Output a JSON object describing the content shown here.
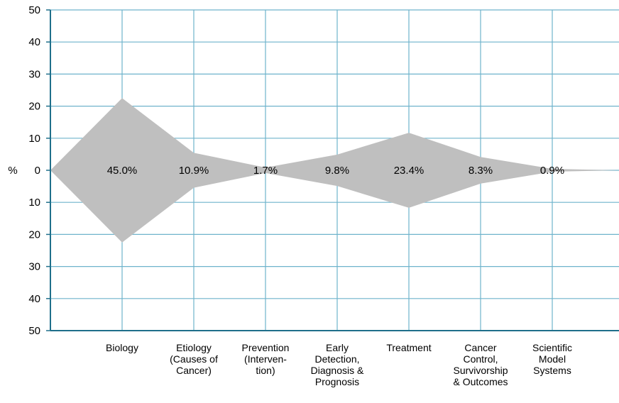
{
  "chart_data": {
    "type": "centered-area",
    "y_label": "%",
    "categories": [
      "Biology",
      "Etiology\n(Causes of\nCancer)",
      "Prevention\n(Interven-\ntion)",
      "Early\nDetection,\nDiagnosis &\nPrognosis",
      "Treatment",
      "Cancer\nControl,\nSurvivorship\n& Outcomes",
      "Scientific\nModel\nSystems"
    ],
    "values": [
      45.0,
      10.9,
      1.7,
      9.8,
      23.4,
      8.3,
      0.9
    ],
    "value_labels": [
      "45.0%",
      "10.9%",
      "1.7%",
      "9.8%",
      "23.4%",
      "8.3%",
      "0.9%"
    ],
    "color": "#bfbfbf",
    "ylim": [
      -50,
      50
    ],
    "yticks": [
      {
        "value": -50,
        "label": "50"
      },
      {
        "value": -40,
        "label": "40"
      },
      {
        "value": -30,
        "label": "30"
      },
      {
        "value": -20,
        "label": "20"
      },
      {
        "value": -10,
        "label": "10"
      },
      0,
      10,
      20,
      30,
      40,
      50
    ],
    "grid": true
  }
}
